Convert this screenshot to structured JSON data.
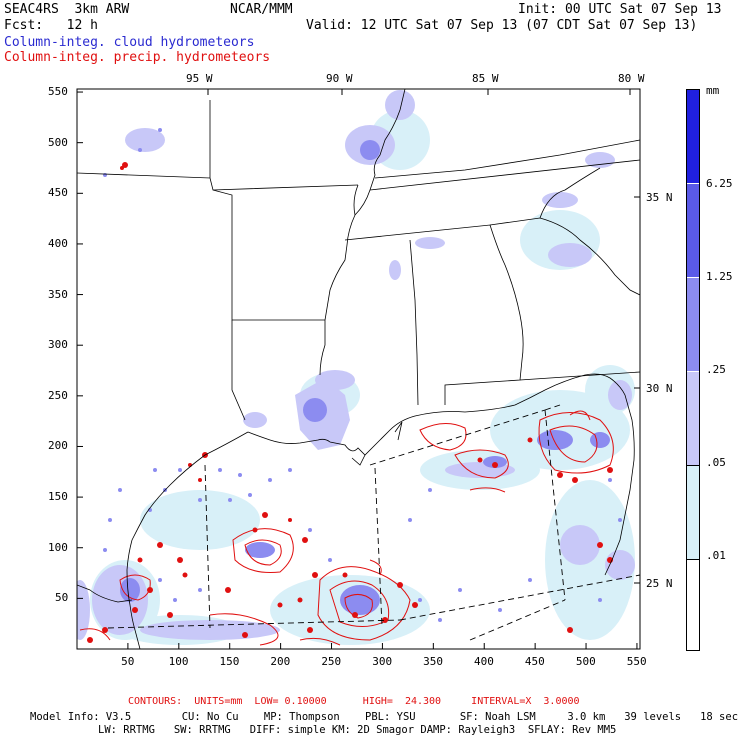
{
  "header": {
    "model": "SEAC4RS  3km ARW",
    "org": "NCAR/MMM",
    "init": "Init: 00 UTC Sat 07 Sep 13",
    "fcst": "Fcst:   12 h",
    "valid": "Valid: 12 UTC Sat 07 Sep 13 (07 CDT Sat 07 Sep 13)",
    "legend_cloud": "Column-integ. cloud hydrometeors",
    "legend_precip": "Column-integ. precip. hydrometeors"
  },
  "map": {
    "lon_labels": [
      "95 W",
      "90 W",
      "85 W",
      "80 W"
    ],
    "lat_labels": [
      "35 N",
      "30 N",
      "25 N"
    ],
    "x_ticks": [
      "50",
      "100",
      "150",
      "200",
      "250",
      "300",
      "350",
      "400",
      "450",
      "500",
      "550"
    ],
    "y_ticks": [
      "550",
      "500",
      "450",
      "400",
      "350",
      "300",
      "250",
      "200",
      "150",
      "100",
      "50"
    ]
  },
  "colorbar": {
    "unit": "mm",
    "labels": [
      "6.25",
      "1.25",
      ".25",
      ".05",
      ".01"
    ],
    "colors": [
      "#2020e0",
      "#5a5ae8",
      "#8c8cf0",
      "#c8c8f8",
      "#d8f0f8",
      "#ffffff"
    ]
  },
  "footer": {
    "contours": "CONTOURS:  UNITS=mm  LOW= 0.10000      HIGH=  24.300     INTERVAL=X  3.0000",
    "info1": "Model Info: V3.5        CU: No Cu    MP: Thompson    PBL: YSU       SF: Noah LSM     3.0 km   39 levels   18 sec",
    "info2": "LW: RRTMG   SW: RRTMG   DIFF: simple KM: 2D Smagor DAMP: Rayleigh3  SFLAY: Rev MM5"
  }
}
